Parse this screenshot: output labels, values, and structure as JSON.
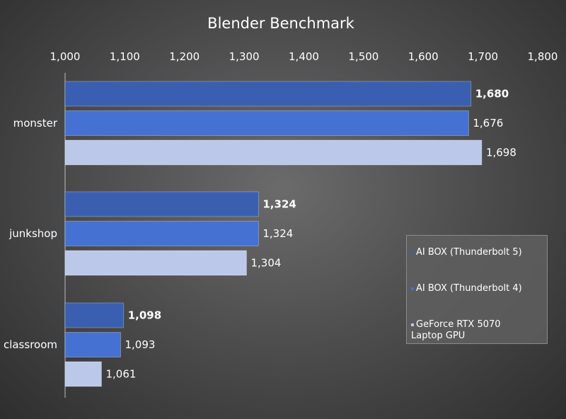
{
  "chart_data": {
    "type": "bar",
    "orientation": "horizontal",
    "title": "Blender Benchmark",
    "categories": [
      "monster",
      "junkshop",
      "classroom"
    ],
    "series": [
      {
        "name": "AI BOX (Thunderbolt 5)",
        "values": [
          1680,
          1324,
          1098
        ],
        "color": "#3a5fb0",
        "label_bold": true
      },
      {
        "name": "AI BOX (Thunderbolt 4)",
        "values": [
          1676,
          1324,
          1093
        ],
        "color": "#4572d2",
        "label_bold": false
      },
      {
        "name": "GeForce RTX 5070 Laptop GPU",
        "values": [
          1698,
          1304,
          1061
        ],
        "color": "#bcc8ea",
        "label_bold": false
      }
    ],
    "xlim": [
      1000,
      1800
    ],
    "x_ticks": [
      1000,
      1100,
      1200,
      1300,
      1400,
      1500,
      1600,
      1700,
      1800
    ],
    "x_tick_labels": [
      "1,000",
      "1,100",
      "1,200",
      "1,300",
      "1,400",
      "1,500",
      "1,600",
      "1,700",
      "1,800"
    ],
    "x_axis_position": "top",
    "grid": false,
    "legend_position": "right"
  }
}
